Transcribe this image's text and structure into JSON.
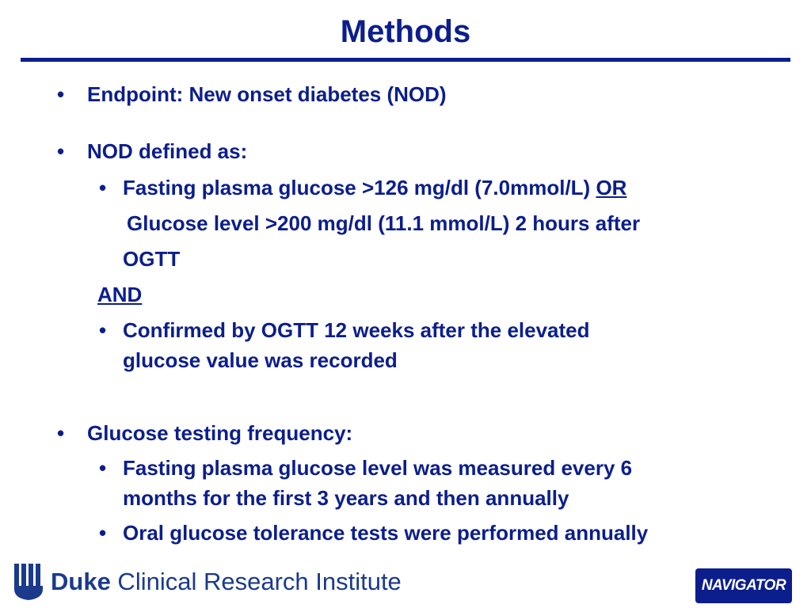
{
  "slide": {
    "title": "Methods"
  },
  "content": {
    "b1": "Endpoint: New onset diabetes (NOD)",
    "b2": "NOD defined as:",
    "b2_sub1_a": "Fasting plasma glucose >126 mg/dl (7.0mmol/L) ",
    "b2_sub1_or": "OR",
    "b2_sub1_line2": "Glucose level >200 mg/dl (11.1 mmol/L) 2 hours after",
    "b2_sub1_line3": "OGTT",
    "and": "AND",
    "b2_sub2_line1": "Confirmed by OGTT 12 weeks after the elevated",
    "b2_sub2_line2": "glucose value was recorded",
    "b3": "Glucose testing frequency:",
    "b3_sub1_line1": "Fasting plasma glucose level was measured every 6",
    "b3_sub1_line2": "months for the first 3 years and then annually",
    "b3_sub2": "Oral glucose tolerance tests were performed annually",
    "bullet_char": "•"
  },
  "footer": {
    "institute_bold": "Duke",
    "institute_rest": " Clinical Research Institute",
    "badge": "NAVIGATOR",
    "shield_icon": "duke-shield-icon",
    "colors": {
      "primary": "#0b1e8c",
      "duke_blue": "#1b3a8c"
    }
  }
}
